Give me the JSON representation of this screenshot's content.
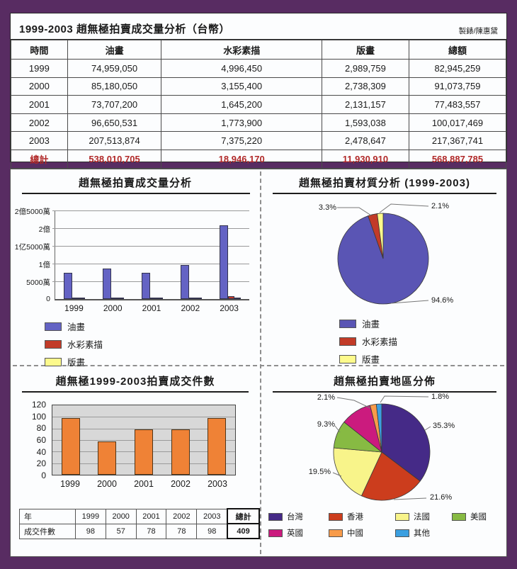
{
  "page": {
    "background": "#582c62",
    "panel_background": "#fcfdfe"
  },
  "report": {
    "title": "1999-2003 趙無極拍賣成交量分析（台幣）",
    "credit": "製錶/陳惠黛",
    "table": {
      "columns": [
        "時間",
        "油畫",
        "水彩素描",
        "版畫",
        "總額"
      ],
      "rows": [
        [
          "1999",
          "74,959,050",
          "4,996,450",
          "2,989,759",
          "82,945,259"
        ],
        [
          "2000",
          "85,180,050",
          "3,155,400",
          "2,738,309",
          "91,073,759"
        ],
        [
          "2001",
          "73,707,200",
          "1,645,200",
          "2,131,157",
          "77,483,557"
        ],
        [
          "2002",
          "96,650,531",
          "1,773,900",
          "1,593,038",
          "100,017,469"
        ],
        [
          "2003",
          "207,513,874",
          "7,375,220",
          "2,478,647",
          "217,367,741"
        ]
      ],
      "total_row": [
        "總計",
        "538,010,705",
        "18,946,170",
        "11,930,910",
        "568,887,785"
      ],
      "total_color": "#b02828"
    }
  },
  "chart_data": [
    {
      "id": "volume_bars",
      "type": "bar",
      "title": "趙無極拍賣成交量分析",
      "categories": [
        "1999",
        "2000",
        "2001",
        "2002",
        "2003"
      ],
      "series": [
        {
          "name": "油畫",
          "color": "#6463c4",
          "values": [
            74959050,
            85180050,
            73707200,
            96650531,
            207513874
          ]
        },
        {
          "name": "水彩素描",
          "color": "#c23b28",
          "values": [
            4996450,
            3155400,
            1645200,
            1773900,
            7375220
          ]
        },
        {
          "name": "版畫",
          "color": "#fdfa8c",
          "values": [
            2989759,
            2738309,
            2131157,
            1593038,
            2478647
          ]
        }
      ],
      "ylim": [
        0,
        250000000
      ],
      "y_ticks": [
        "2億5000萬",
        "2億",
        "1亿5000萬",
        "1億",
        "5000萬",
        "0"
      ],
      "grid": true,
      "legend_position": "bottom-left"
    },
    {
      "id": "material_pie",
      "type": "pie",
      "title": "趙無極拍賣材質分析 (1999-2003)",
      "start": "12-oclock",
      "direction": "clockwise",
      "slices": [
        {
          "label": "油畫",
          "value": 94.6,
          "display": "94.6%",
          "color": "#5a55b4"
        },
        {
          "label": "水彩素描",
          "value": 3.3,
          "display": "3.3%",
          "color": "#c23b28"
        },
        {
          "label": "版畫",
          "value": 2.1,
          "display": "2.1%",
          "color": "#fdfa8c"
        }
      ],
      "legend_position": "bottom-center"
    },
    {
      "id": "lots_bars",
      "type": "bar",
      "title": "趙無極1999-2003拍賣成交件數",
      "categories": [
        "1999",
        "2000",
        "2001",
        "2002",
        "2003"
      ],
      "values": [
        98,
        57,
        78,
        78,
        98
      ],
      "bar_color": "#ef8236",
      "ylim": [
        0,
        120
      ],
      "y_ticks": [
        0,
        20,
        40,
        60,
        80,
        100,
        120
      ],
      "plot_background": "#d8d8d8",
      "grid": true,
      "summary_table": {
        "header": [
          "年",
          "1999",
          "2000",
          "2001",
          "2002",
          "2003",
          "總計"
        ],
        "row": [
          "成交件數",
          "98",
          "57",
          "78",
          "78",
          "98",
          "409"
        ]
      }
    },
    {
      "id": "region_pie",
      "type": "pie",
      "title": "趙無極拍賣地區分佈",
      "start": "12-oclock",
      "direction": "clockwise",
      "slices": [
        {
          "label": "台灣",
          "value": 35.3,
          "display": "35.3%",
          "color": "#452a87"
        },
        {
          "label": "香港",
          "value": 21.6,
          "display": "21.6%",
          "color": "#cc3d1d"
        },
        {
          "label": "法國",
          "value": 19.5,
          "display": "19.5%",
          "color": "#f8f48a"
        },
        {
          "label": "美國",
          "value": 9.3,
          "display": "9.3%",
          "color": "#87ba43"
        },
        {
          "label": "英國",
          "value": 10.4,
          "display": "",
          "color": "#cb1b7e"
        },
        {
          "label": "中國",
          "value": 2.1,
          "display": "2.1%",
          "color": "#f89b4a"
        },
        {
          "label": "其他",
          "value": 1.8,
          "display": "1.8%",
          "color": "#3b9fe0"
        }
      ],
      "legend_position": "bottom"
    }
  ]
}
